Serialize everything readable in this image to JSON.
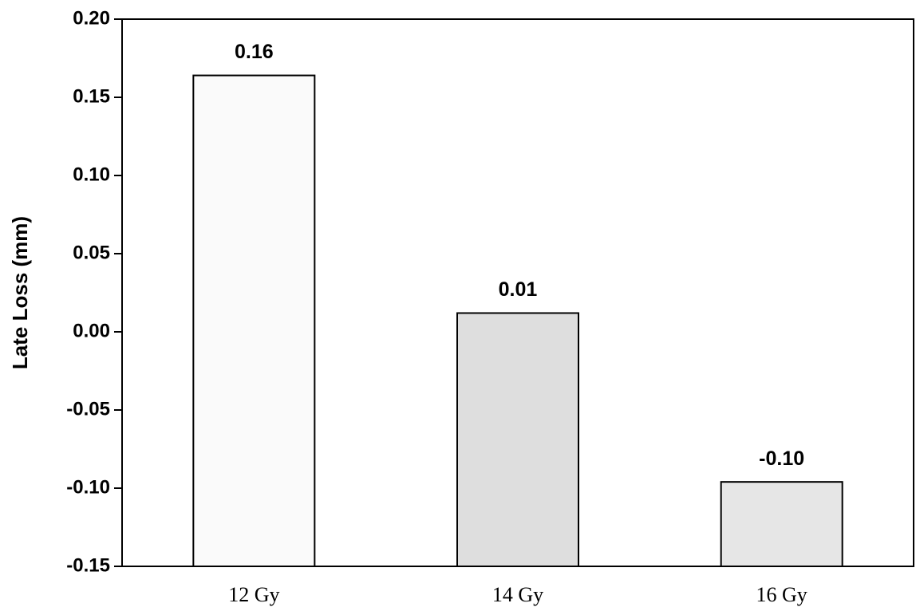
{
  "chart_data": {
    "type": "bar",
    "title": "",
    "xlabel": "",
    "ylabel": "Late Loss (mm)",
    "categories": [
      "12 Gy",
      "14 Gy",
      "16 Gy"
    ],
    "values": [
      0.164,
      0.012,
      -0.096
    ],
    "data_labels": [
      "0.16",
      "0.01",
      "-0.10"
    ],
    "bar_colors": [
      "#fafafa",
      "#dedede",
      "#e6e6e6"
    ],
    "ylim": [
      -0.15,
      0.2
    ],
    "yticks": [
      -0.15,
      -0.1,
      -0.05,
      0.0,
      0.05,
      0.1,
      0.15,
      0.2
    ],
    "ytick_labels": [
      "-0.15",
      "-0.10",
      "-0.05",
      "0.00",
      "0.05",
      "0.10",
      "0.15",
      "0.20"
    ],
    "grid": false,
    "legend": "none"
  }
}
